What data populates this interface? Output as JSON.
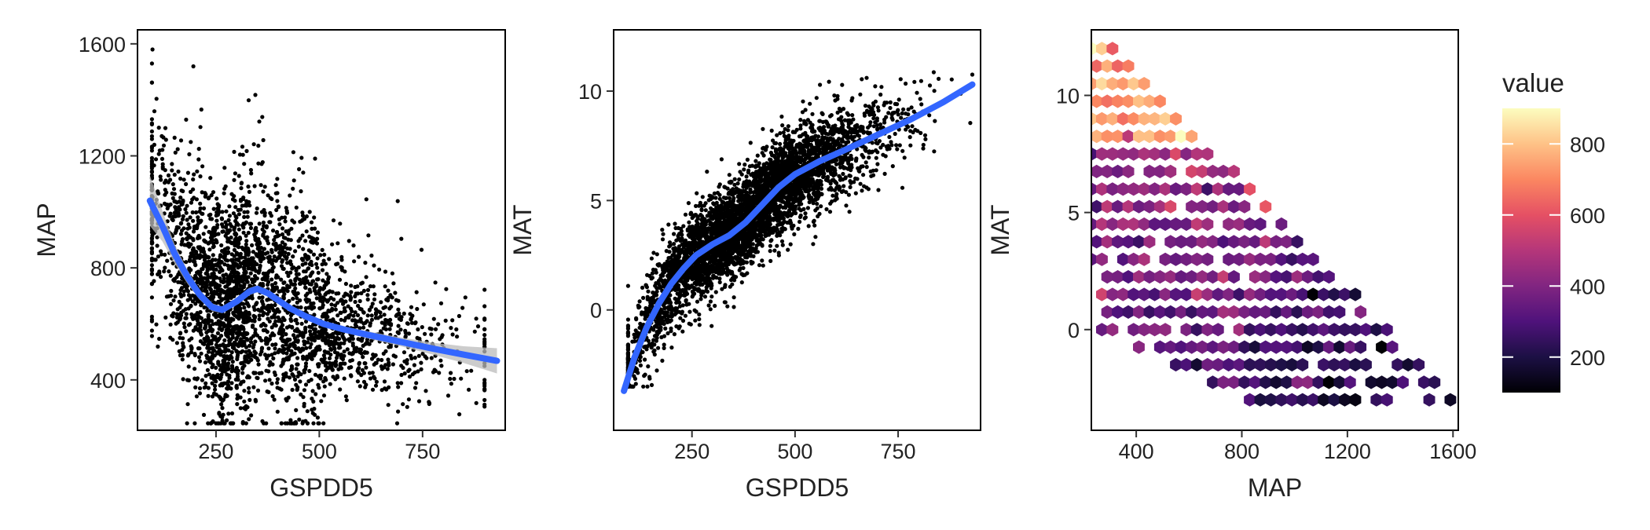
{
  "chart_data": [
    {
      "type": "scatter",
      "xlabel": "GSPDD5",
      "ylabel": "MAP",
      "xlim": [
        60,
        950
      ],
      "ylim": [
        220,
        1650
      ],
      "xticks": [
        250,
        500,
        750
      ],
      "yticks": [
        400,
        800,
        1200,
        1600
      ],
      "grid": false,
      "points": {
        "n": 3000,
        "color": "#000000",
        "seed": 11
      },
      "smooth": {
        "color": "#3366FF",
        "band_color": "#BBBBBB",
        "x": [
          90,
          120,
          150,
          180,
          210,
          240,
          265,
          300,
          330,
          350,
          375,
          400,
          430,
          470,
          510,
          560,
          620,
          700,
          780,
          850,
          930
        ],
        "y": [
          1040,
          950,
          850,
          770,
          705,
          660,
          650,
          680,
          715,
          725,
          710,
          685,
          655,
          625,
          600,
          580,
          560,
          535,
          510,
          490,
          468
        ],
        "se": [
          90,
          55,
          35,
          25,
          18,
          14,
          12,
          12,
          13,
          13,
          12,
          11,
          10,
          10,
          10,
          11,
          13,
          16,
          22,
          30,
          45
        ]
      }
    },
    {
      "type": "scatter",
      "xlabel": "GSPDD5",
      "ylabel": "MAT",
      "xlim": [
        60,
        950
      ],
      "ylim": [
        -5.5,
        12.8
      ],
      "xticks": [
        250,
        500,
        750
      ],
      "yticks": [
        0,
        5,
        10
      ],
      "grid": false,
      "points": {
        "n": 4500,
        "color": "#000000",
        "seed": 23
      },
      "smooth": {
        "color": "#3366FF",
        "x": [
          85,
          110,
          140,
          170,
          200,
          230,
          260,
          300,
          340,
          380,
          420,
          460,
          500,
          560,
          620,
          700,
          780,
          860,
          930
        ],
        "y": [
          -3.7,
          -2.2,
          -0.8,
          0.3,
          1.2,
          1.9,
          2.5,
          3.0,
          3.4,
          4.0,
          4.8,
          5.6,
          6.2,
          6.8,
          7.3,
          8.0,
          8.7,
          9.5,
          10.3
        ]
      }
    },
    {
      "type": "heatmap",
      "subtype": "hexbin",
      "xlabel": "MAP",
      "ylabel": "MAT",
      "xlim": [
        230,
        1620
      ],
      "ylim": [
        -4.3,
        12.8
      ],
      "xticks": [
        400,
        800,
        1200,
        1600
      ],
      "yticks": [
        0,
        5,
        10
      ],
      "grid": false,
      "hexbins": {
        "seed": 37
      },
      "legend": {
        "title": "value",
        "position": "right",
        "range": [
          100,
          900
        ],
        "breaks": [
          200,
          400,
          600,
          800
        ],
        "colors": [
          "#000004",
          "#1C1044",
          "#4F127B",
          "#812581",
          "#B5367A",
          "#E55064",
          "#FB8761",
          "#FEC287",
          "#FCFDBF"
        ]
      }
    }
  ]
}
